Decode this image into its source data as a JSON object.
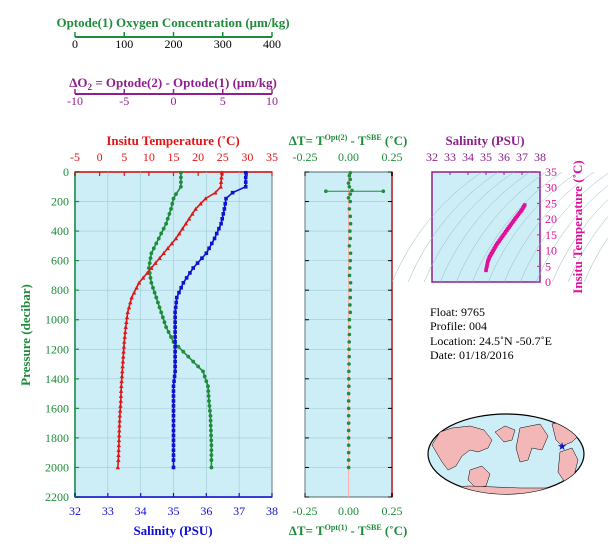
{
  "colors": {
    "oxygen": "#1e8c3a",
    "delta_o2": "#8e1f8e",
    "temperature": "#e01515",
    "salinity": "#1010d0",
    "delta_t": "#1e8c3a",
    "ts": "#e0109a",
    "panel_bg": "#cdeef6",
    "axis": "#000000"
  },
  "labels": {
    "oxygen_axis": "Optode(1) Oxygen Concentration (μm/kg)",
    "delta_o2_lhs": "ΔO",
    "delta_o2_sub": "2",
    "delta_o2_rhs": " = Optode(2) - Optode(1)   (μm/kg)",
    "temp_axis": "Insitu Temperature (˚C)",
    "salinity_axis": "Salinity (PSU)",
    "pressure_axis": "Pressure (decibar)",
    "dt_top_a": "ΔT= T",
    "dt_top_sup1": "Opt(2)",
    "dt_top_b": " - T",
    "dt_top_sup2": "SBE",
    "dt_top_c": " (˚C)",
    "dt_bot_a": "ΔT= T",
    "dt_bot_sup1": "Opt(1)",
    "dt_bot_b": " - T",
    "dt_bot_sup2": "SBE",
    "dt_bot_c": " (˚C)",
    "ts_top": "Salinity (PSU)",
    "ts_right": "Insitu Temperature (˚C)"
  },
  "info": {
    "float": "Float:  9765",
    "profile": "Profile:  004",
    "location": "Location:  24.5˚N  -50.7˚E",
    "date": "Date:  01/18/2016"
  },
  "chart_data": [
    {
      "type": "line",
      "title": "Optode(1) Oxygen Concentration (μm/kg)",
      "xlim": [
        0,
        400
      ],
      "ylabel": "Pressure (decibar)",
      "ylim": [
        0,
        2200
      ],
      "ticks": [
        0,
        100,
        200,
        300,
        400
      ],
      "series": [
        {
          "p": [
            5,
            100,
            150,
            180,
            250,
            350,
            450,
            550,
            650,
            750,
            850,
            950,
            1050,
            1150,
            1250,
            1350,
            1450,
            1550,
            1650,
            1750,
            1850,
            1950,
            2000
          ],
          "values": [
            215,
            215,
            205,
            200,
            195,
            185,
            170,
            155,
            150,
            155,
            165,
            175,
            185,
            200,
            230,
            260,
            270,
            272,
            275,
            276,
            277,
            277,
            277
          ]
        }
      ]
    },
    {
      "type": "line",
      "title": "ΔO2 = Optode(2) - Optode(1) (μm/kg)",
      "xlim": [
        -10,
        10
      ],
      "ticks": [
        -10,
        -5,
        0,
        5,
        10
      ],
      "series": []
    },
    {
      "type": "line",
      "title": "Insitu Temperature (˚C)",
      "xlim": [
        -5,
        35
      ],
      "ticks": [
        -5,
        0,
        5,
        10,
        15,
        20,
        25,
        30,
        35
      ],
      "ylabel": "Pressure (decibar)",
      "ylim": [
        0,
        2200
      ],
      "series": [
        {
          "name": "Insitu Temperature (˚C)",
          "p": [
            5,
            100,
            140,
            180,
            250,
            350,
            450,
            550,
            650,
            750,
            850,
            950,
            1050,
            1150,
            1250,
            1350,
            1450,
            1550,
            1650,
            1750,
            1850,
            1950,
            2000
          ],
          "values": [
            24.8,
            24.6,
            23.5,
            21.5,
            19.5,
            17.5,
            15.5,
            13,
            10.5,
            8,
            6.5,
            5.7,
            5.3,
            5,
            4.8,
            4.6,
            4.4,
            4.3,
            4.1,
            4,
            3.9,
            3.8,
            3.7
          ]
        }
      ]
    },
    {
      "type": "line",
      "title": "Salinity (PSU)",
      "xlim": [
        32,
        38
      ],
      "ticks": [
        32,
        33,
        34,
        35,
        36,
        37,
        38
      ],
      "series": [
        {
          "name": "Salinity (PSU)",
          "p": [
            5,
            100,
            140,
            180,
            250,
            350,
            450,
            550,
            650,
            750,
            850,
            950,
            1050,
            1150,
            1250,
            1350,
            1450,
            1550,
            1650,
            1750,
            1850,
            1950,
            2000
          ],
          "values": [
            37.2,
            37.2,
            36.8,
            36.6,
            36.55,
            36.45,
            36.25,
            36.0,
            35.6,
            35.3,
            35.1,
            35.05,
            35.05,
            35.05,
            35.05,
            35.05,
            35.0,
            35.0,
            35.0,
            35.0,
            35.0,
            35.0,
            35.0
          ]
        }
      ]
    },
    {
      "type": "scatter",
      "title": "ΔT= T Opt(2) - T SBE (˚C)",
      "xlim": [
        -0.25,
        0.25
      ],
      "ticks": [
        -0.25,
        0,
        0.25
      ],
      "xlabel": "ΔT= T Opt(1) - T SBE (˚C)",
      "ylim": [
        0,
        2200
      ],
      "series": [
        {
          "p": [
            5,
            25,
            50,
            75,
            100,
            125,
            150,
            175,
            200,
            250,
            300,
            350,
            400,
            450,
            500,
            550,
            600,
            650,
            700,
            750,
            800,
            850,
            900,
            950,
            1000,
            1050,
            1100,
            1150,
            1200,
            1250,
            1300,
            1350,
            1400,
            1450,
            1500,
            1550,
            1600,
            1650,
            1700,
            1750,
            1800,
            1850,
            1900,
            1950,
            2000
          ],
          "values": [
            0.01,
            0.005,
            0.01,
            0.0,
            0.005,
            0.02,
            0.01,
            0.0,
            0.01,
            0.005,
            0.01,
            0.012,
            0.008,
            0.01,
            0.005,
            0.012,
            0.01,
            0.008,
            0.006,
            0.012,
            0.01,
            0.01,
            0.008,
            0.01,
            0.005,
            0.006,
            0.005,
            0.004,
            0.003,
            0.004,
            0.003,
            0.002,
            0.002,
            0.002,
            0.001,
            0.001,
            0.001,
            0.001,
            0.001,
            0.001,
            0.001,
            0.001,
            0.001,
            0.001,
            0.001
          ]
        }
      ],
      "errorbar": {
        "p": 130,
        "from": -0.13,
        "to": 0.2
      }
    },
    {
      "type": "scatter",
      "title": "Salinity (PSU)",
      "xlim": [
        32,
        38
      ],
      "xticks": [
        32,
        33,
        34,
        35,
        36,
        37,
        38
      ],
      "ylabel": "Insitu Temperature (˚C)",
      "ylim": [
        0,
        35
      ],
      "yticks": [
        0,
        5,
        10,
        15,
        20,
        25,
        30,
        35
      ],
      "series": [
        {
          "x": [
            35.0,
            35.02,
            35.05,
            35.1,
            35.2,
            35.4,
            35.6,
            35.85,
            36.1,
            36.35,
            36.6,
            36.8,
            37.0,
            37.15,
            37.2
          ],
          "y": [
            3.7,
            4.3,
            5,
            6.5,
            8,
            10,
            12,
            14,
            16,
            18,
            20,
            21.5,
            23,
            24.5,
            25
          ]
        }
      ]
    }
  ]
}
